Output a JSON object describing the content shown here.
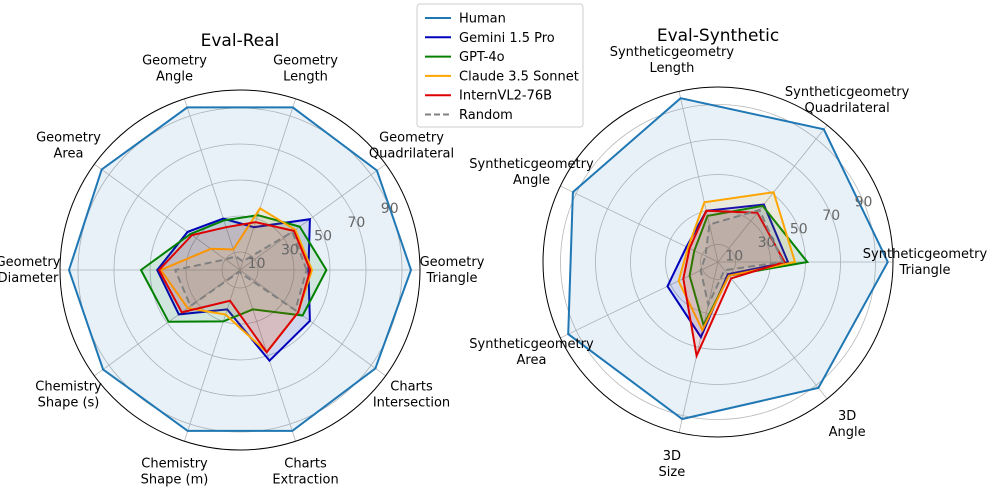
{
  "chart_data": [
    {
      "type": "radar",
      "title": "Eval-Real",
      "categories": [
        [
          "Geometry",
          "Triangle"
        ],
        [
          "Geometry",
          "Quadrilateral"
        ],
        [
          "Geometry",
          "Length"
        ],
        [
          "Geometry",
          "Angle"
        ],
        [
          "Geometry",
          "Area"
        ],
        [
          "Geometry",
          "Diameter"
        ],
        [
          "Chemistry",
          "Shape (s)"
        ],
        [
          "Chemistry",
          "Shape (m)"
        ],
        [
          "Charts",
          "Extraction"
        ],
        [
          "Charts",
          "Intersection"
        ]
      ],
      "rlim": [
        0,
        100
      ],
      "rticks": [
        10,
        30,
        50,
        70,
        90
      ],
      "series": [
        {
          "name": "Human",
          "values": [
            95,
            94,
            95,
            95,
            95,
            95,
            94,
            94,
            94,
            93
          ]
        },
        {
          "name": "Gemini 1.5 Pro",
          "values": [
            38,
            48,
            25,
            30,
            36,
            46,
            42,
            23,
            53,
            48
          ]
        },
        {
          "name": "GPT-4o",
          "values": [
            48,
            41,
            32,
            29,
            34,
            55,
            49,
            30,
            23,
            43
          ]
        },
        {
          "name": "Claude 3.5 Sonnet",
          "values": [
            40,
            38,
            36,
            12,
            20,
            44,
            36,
            26,
            48,
            40
          ]
        },
        {
          "name": "InternVL2-76B",
          "values": [
            39,
            37,
            28,
            25,
            33,
            45,
            40,
            18,
            48,
            40
          ]
        },
        {
          "name": "Random",
          "values": [
            37,
            36,
            5,
            8,
            10,
            36,
            34,
            1,
            2,
            38
          ]
        }
      ]
    },
    {
      "type": "radar",
      "title": "Eval-Synthetic",
      "categories": [
        [
          "Syntheticgeometry",
          "Triangle"
        ],
        [
          "Syntheticgeometry",
          "Quadrilateral"
        ],
        [
          "Syntheticgeometry",
          "Length"
        ],
        [
          "Syntheticgeometry",
          "Angle"
        ],
        [
          "Syntheticgeometry",
          "Area"
        ],
        [
          "3D",
          "Size"
        ],
        [
          "3D",
          "Angle"
        ]
      ],
      "rlim": [
        0,
        100
      ],
      "rticks": [
        10,
        30,
        50,
        70,
        90
      ],
      "series": [
        {
          "name": "Human",
          "values": [
            97,
            97,
            96,
            92,
            95,
            92,
            92
          ]
        },
        {
          "name": "Gemini 1.5 Pro",
          "values": [
            40,
            42,
            30,
            20,
            32,
            44,
            9
          ]
        },
        {
          "name": "GPT-4o",
          "values": [
            51,
            41,
            27,
            15,
            18,
            37,
            10
          ]
        },
        {
          "name": "Claude 3.5 Sonnet",
          "values": [
            44,
            51,
            35,
            19,
            25,
            40,
            10
          ]
        },
        {
          "name": "InternVL2-76B",
          "values": [
            38,
            36,
            30,
            18,
            22,
            55,
            12
          ]
        },
        {
          "name": "Random",
          "values": [
            37,
            38,
            22,
            8,
            11,
            25,
            6
          ]
        }
      ]
    }
  ],
  "legend": {
    "position": "upper-center",
    "entries": [
      {
        "name": "Human",
        "color": "#1f77b4",
        "style": "solid"
      },
      {
        "name": "Gemini 1.5 Pro",
        "color": "#0000bb",
        "style": "solid"
      },
      {
        "name": "GPT-4o",
        "color": "#008000",
        "style": "solid"
      },
      {
        "name": "Claude 3.5 Sonnet",
        "color": "#ffa500",
        "style": "solid"
      },
      {
        "name": "InternVL2-76B",
        "color": "#dd0000",
        "style": "solid"
      },
      {
        "name": "Random",
        "color": "#808080",
        "style": "dashed"
      }
    ]
  }
}
